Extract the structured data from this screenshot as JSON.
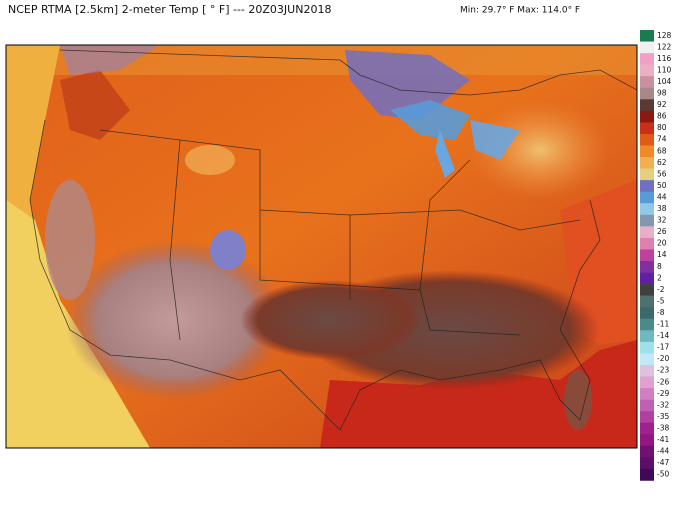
{
  "header": {
    "title": "NCEP RTMA [2.5km] 2-meter Temp [ ° F]  --- 20Z03JUN2018",
    "minmax": "Min: 29.7° F Max: 114.0° F"
  },
  "colorbar": {
    "labels": [
      128,
      122,
      116,
      110,
      104,
      98,
      92,
      86,
      80,
      74,
      68,
      62,
      56,
      50,
      44,
      38,
      32,
      26,
      20,
      14,
      8,
      2,
      -2,
      -5,
      -8,
      -11,
      -14,
      -17,
      -20,
      -23,
      -26,
      -29,
      -32,
      -35,
      -38,
      -41,
      -44,
      -47,
      -50
    ]
  }
}
